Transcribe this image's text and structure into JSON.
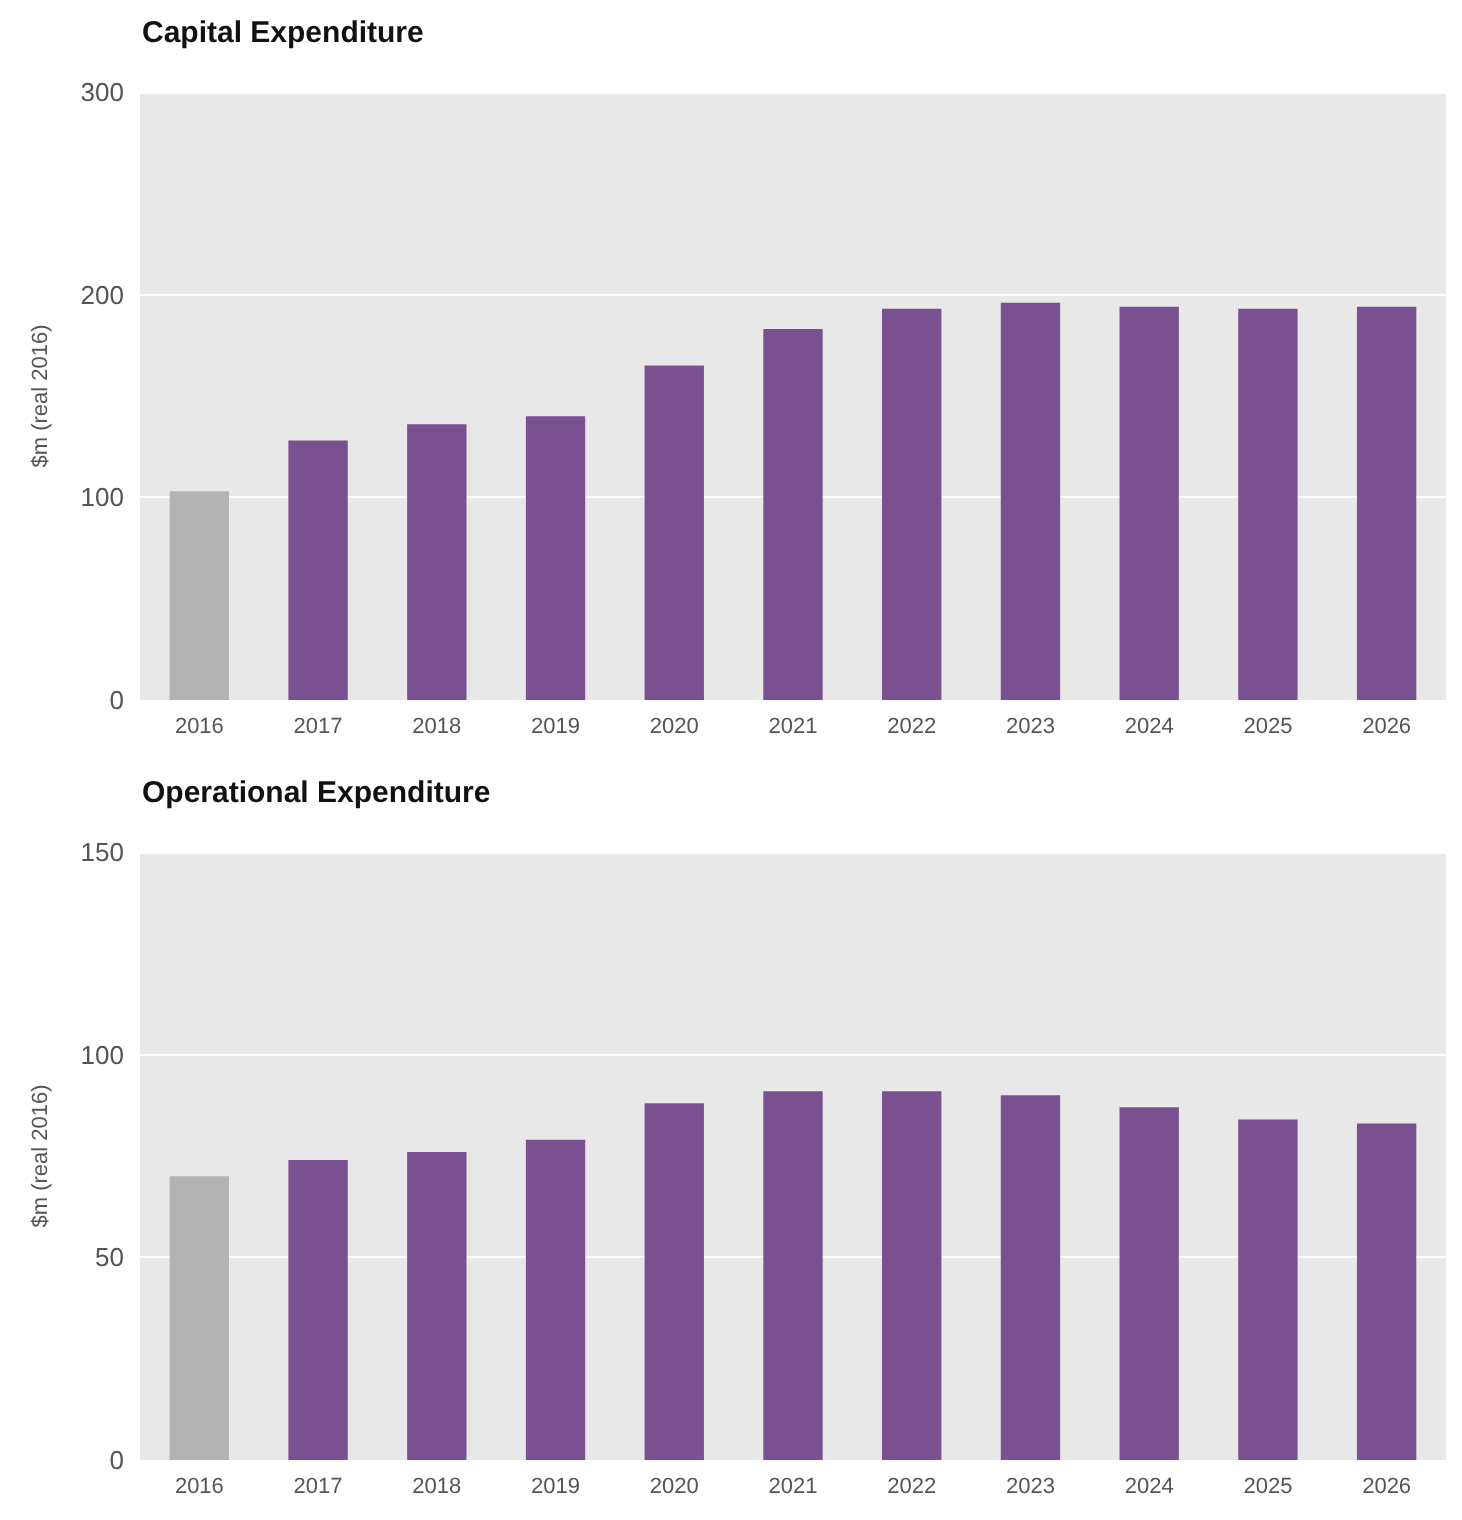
{
  "chart_data": [
    {
      "type": "bar",
      "title": "Capital Expenditure",
      "ylabel": "$m (real 2016)",
      "categories": [
        "2016",
        "2017",
        "2018",
        "2019",
        "2020",
        "2021",
        "2022",
        "2023",
        "2024",
        "2025",
        "2026"
      ],
      "values": [
        103,
        128,
        136,
        140,
        165,
        183,
        193,
        196,
        194,
        193,
        194
      ],
      "colors": [
        "#b3b3b3",
        "#7a5190",
        "#7a5190",
        "#7a5190",
        "#7a5190",
        "#7a5190",
        "#7a5190",
        "#7a5190",
        "#7a5190",
        "#7a5190",
        "#7a5190"
      ],
      "ylim": [
        0,
        300
      ],
      "yticks": [
        0,
        100,
        200,
        300
      ],
      "grid": "y"
    },
    {
      "type": "bar",
      "title": "Operational Expenditure",
      "ylabel": "$m (real 2016)",
      "categories": [
        "2016",
        "2017",
        "2018",
        "2019",
        "2020",
        "2021",
        "2022",
        "2023",
        "2024",
        "2025",
        "2026"
      ],
      "values": [
        70,
        74,
        76,
        79,
        88,
        91,
        91,
        90,
        87,
        84,
        83
      ],
      "colors": [
        "#b3b3b3",
        "#7a5190",
        "#7a5190",
        "#7a5190",
        "#7a5190",
        "#7a5190",
        "#7a5190",
        "#7a5190",
        "#7a5190",
        "#7a5190",
        "#7a5190"
      ],
      "ylim": [
        0,
        150
      ],
      "yticks": [
        0,
        50,
        100,
        150
      ],
      "grid": "y"
    }
  ]
}
